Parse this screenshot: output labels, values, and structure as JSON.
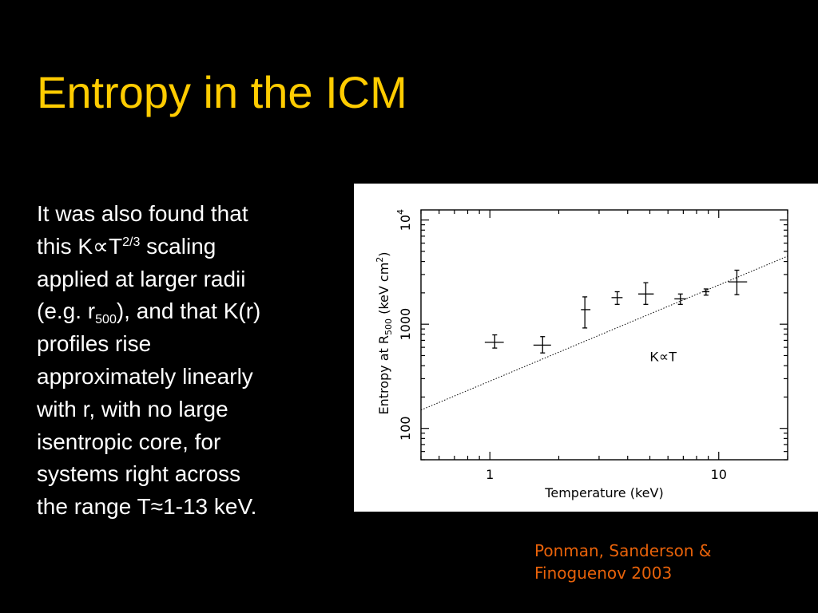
{
  "slide": {
    "title": "Entropy in the ICM",
    "body": {
      "line1": "It was also found that",
      "line2_a": "this K",
      "propto": "∝",
      "line2_b": "T",
      "line2_exp": "2/3",
      "line2_c": " scaling",
      "line3": "applied at larger radii",
      "line4_a": "(e.g. r",
      "line4_sub": "500",
      "line4_b": "), and that K(r)",
      "line5": "profiles rise",
      "line6": "approximately linearly",
      "line7": "with r, with no large",
      "line8": "isentropic core, for",
      "line9": "systems right across",
      "line10_a": "the range T",
      "approx": "≈",
      "line10_b": "1-13 keV."
    },
    "citation": {
      "line1": "Ponman, Sanderson &",
      "line2": "Finoguenov 2003"
    }
  },
  "colors": {
    "background": "#000000",
    "title": "#FFCC00",
    "body": "#FFFFFF",
    "citation": "#E8620A",
    "plot_ink": "#000000"
  },
  "chart_data": {
    "type": "scatter",
    "x_scale": "log",
    "y_scale": "log",
    "xlim": [
      0.5,
      20
    ],
    "ylim": [
      50,
      12500
    ],
    "xlabel": "Temperature  (keV)",
    "ylabel_prefix": "Entropy  at  R",
    "ylabel_sub": "500",
    "ylabel_suffix": "  (keV  cm",
    "ylabel_sup": "2",
    "ylabel_close": ")",
    "x_tick_labels": [
      {
        "value": 1,
        "label": "1"
      },
      {
        "value": 10,
        "label": "10"
      }
    ],
    "y_tick_labels": [
      {
        "value": 100,
        "label": "100"
      },
      {
        "value": 1000,
        "label": "1000"
      },
      {
        "value": 10000,
        "label": "10",
        "exp": "4"
      }
    ],
    "points": [
      {
        "x": 1.05,
        "y": 670,
        "xerr": [
          0.95,
          1.15
        ],
        "yerr": [
          590,
          790
        ]
      },
      {
        "x": 1.7,
        "y": 630,
        "xerr": [
          1.55,
          1.85
        ],
        "yerr": [
          530,
          760
        ]
      },
      {
        "x": 2.6,
        "y": 1380,
        "xerr": [
          2.5,
          2.75
        ],
        "yerr": [
          920,
          1830
        ]
      },
      {
        "x": 3.6,
        "y": 1800,
        "xerr": [
          3.4,
          3.8
        ],
        "yerr": [
          1550,
          2050
        ]
      },
      {
        "x": 4.8,
        "y": 1950,
        "xerr": [
          4.45,
          5.2
        ],
        "yerr": [
          1550,
          2500
        ]
      },
      {
        "x": 6.8,
        "y": 1750,
        "xerr": [
          6.4,
          7.2
        ],
        "yerr": [
          1550,
          1950
        ]
      },
      {
        "x": 8.8,
        "y": 2050,
        "xerr": [
          8.5,
          9.1
        ],
        "yerr": [
          1900,
          2180
        ]
      },
      {
        "x": 12.0,
        "y": 2550,
        "xerr": [
          11.0,
          13.3
        ],
        "yerr": [
          1920,
          3300
        ]
      }
    ],
    "reference_line": {
      "label": "K∝T",
      "style": "dotted",
      "x": [
        0.5,
        20
      ],
      "y": [
        150,
        4500
      ]
    }
  }
}
